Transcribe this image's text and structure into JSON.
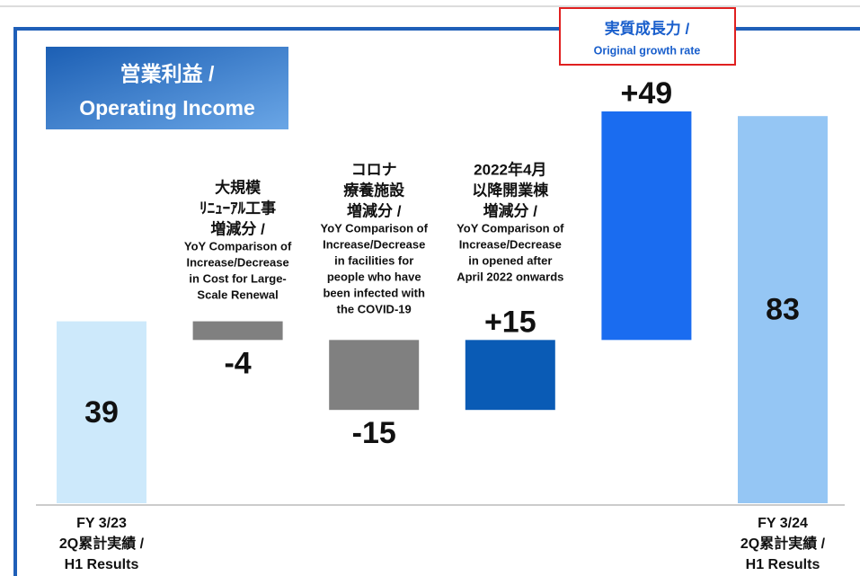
{
  "chart_data": {
    "type": "waterfall",
    "title": [
      "営業利益 /",
      "Operating Income"
    ],
    "categories": [
      [
        "FY 3/23",
        "2Q累計実績 /",
        "H1 Results"
      ],
      [
        "大規模",
        "ﾘﾆｭｰｱﾙ工事",
        "増減分 /",
        "YoY Comparison of",
        "Increase/Decrease",
        "in Cost for Large-",
        "Scale Renewal"
      ],
      [
        "コロナ",
        "療養施設",
        "増減分 /",
        "YoY Comparison of",
        "Increase/Decrease",
        "in facilities for",
        "people who have",
        "been infected with",
        "the COVID-19"
      ],
      [
        "2022年4月",
        "以降開業棟",
        "増減分 /",
        "YoY Comparison of",
        "Increase/Decrease",
        "in opened after",
        "April 2022 onwards"
      ],
      [
        "実質成長力 /",
        "Original growth rate"
      ],
      [
        "FY 3/24",
        "2Q累計実績 /",
        "H1 Results"
      ]
    ],
    "values": [
      39,
      -4,
      -15,
      15,
      49,
      83
    ],
    "value_labels": [
      "39",
      "-4",
      "-15",
      "+15",
      "+49",
      "83"
    ],
    "kinds": [
      "total",
      "delta",
      "delta",
      "delta",
      "delta",
      "total"
    ],
    "colors": [
      "#cde9fb",
      "#808080",
      "#808080",
      "#0a5bb5",
      "#1a6cf0",
      "#95c6f4"
    ]
  }
}
